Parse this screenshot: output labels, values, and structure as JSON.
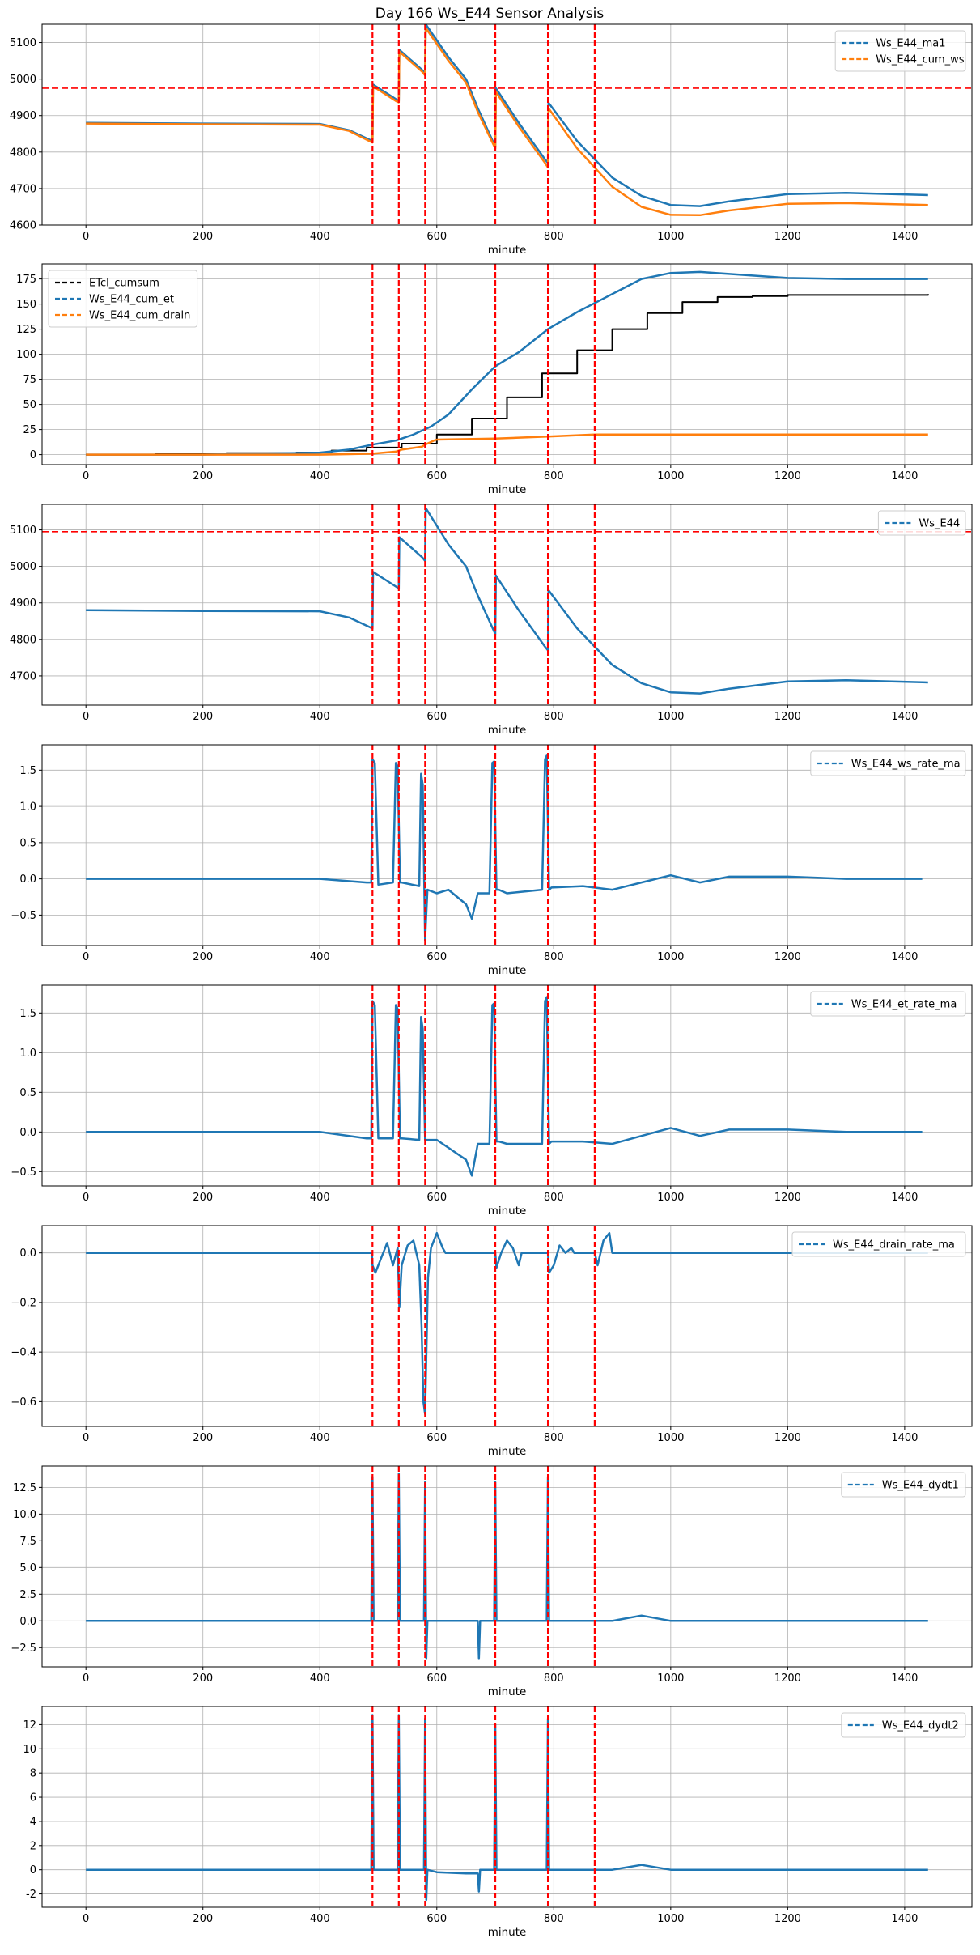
{
  "figure_title": "Day 166 Ws_E44 Sensor Analysis",
  "colors": {
    "blue": "#1f77b4",
    "orange": "#ff7f0e",
    "black": "#000000",
    "red": "#ff0000",
    "grid": "#b0b0b0"
  },
  "chart_data": [
    {
      "id": "p1",
      "type": "line",
      "title": "Day 166 Ws_E44 Sensor Analysis",
      "xlabel": "minute",
      "xlim": [
        -75,
        1515
      ],
      "ylim": [
        4600,
        5150
      ],
      "xticks": [
        0,
        200,
        400,
        600,
        800,
        1000,
        1200,
        1400
      ],
      "yticks": [
        4600,
        4700,
        4800,
        4900,
        5000,
        5100
      ],
      "vlines": [
        490,
        535,
        580,
        700,
        790,
        870
      ],
      "hline": 4975,
      "legend_position": "top-right",
      "series": [
        {
          "name": "Ws_E44_ma1",
          "color": "blue",
          "x": [
            0,
            200,
            400,
            450,
            490,
            491,
            530,
            535,
            536,
            575,
            580,
            581,
            620,
            650,
            670,
            700,
            701,
            740,
            785,
            790,
            791,
            840,
            900,
            950,
            1000,
            1050,
            1100,
            1200,
            1300,
            1440
          ],
          "y": [
            4880,
            4878,
            4877,
            4860,
            4830,
            4985,
            4945,
            4940,
            5080,
            5025,
            5015,
            5150,
            5060,
            5000,
            4920,
            4815,
            4975,
            4880,
            4780,
            4770,
            4935,
            4830,
            4730,
            4680,
            4655,
            4652,
            4665,
            4685,
            4688,
            4682
          ]
        },
        {
          "name": "Ws_E44_cum_ws",
          "color": "orange",
          "x": [
            0,
            200,
            400,
            450,
            490,
            491,
            530,
            535,
            536,
            575,
            580,
            581,
            620,
            650,
            670,
            700,
            701,
            740,
            785,
            790,
            791,
            840,
            900,
            950,
            1000,
            1050,
            1100,
            1200,
            1300,
            1440
          ],
          "y": [
            4878,
            4876,
            4875,
            4858,
            4826,
            4980,
            4940,
            4936,
            5075,
            5020,
            5010,
            5140,
            5050,
            4990,
            4910,
            4810,
            4965,
            4870,
            4770,
            4758,
            4920,
            4810,
            4705,
            4650,
            4628,
            4627,
            4640,
            4658,
            4660,
            4655
          ]
        }
      ]
    },
    {
      "id": "p2",
      "type": "line",
      "xlabel": "minute",
      "xlim": [
        -75,
        1515
      ],
      "ylim": [
        -10,
        190
      ],
      "xticks": [
        0,
        200,
        400,
        600,
        800,
        1000,
        1200,
        1400
      ],
      "yticks": [
        0,
        25,
        50,
        75,
        100,
        125,
        150,
        175
      ],
      "vlines": [
        490,
        535,
        580,
        700,
        790,
        870
      ],
      "legend_position": "top-left",
      "series": [
        {
          "name": "ETcl_cumsum",
          "color": "black",
          "step": true,
          "x": [
            0,
            120,
            240,
            360,
            420,
            480,
            540,
            600,
            660,
            720,
            780,
            840,
            900,
            960,
            1020,
            1080,
            1140,
            1200,
            1440
          ],
          "y": [
            0,
            1,
            1.5,
            2,
            4,
            7,
            11,
            20,
            36,
            57,
            81,
            104,
            125,
            141,
            152,
            157,
            158,
            159,
            160
          ]
        },
        {
          "name": "Ws_E44_cum_et",
          "color": "blue",
          "x": [
            0,
            200,
            400,
            450,
            490,
            530,
            560,
            590,
            620,
            660,
            700,
            740,
            790,
            840,
            900,
            950,
            1000,
            1050,
            1100,
            1200,
            1300,
            1440
          ],
          "y": [
            0,
            0,
            2,
            5,
            10,
            14,
            20,
            28,
            40,
            65,
            88,
            102,
            125,
            142,
            160,
            175,
            181,
            182,
            180,
            176,
            175,
            175
          ]
        },
        {
          "name": "Ws_E44_cum_drain",
          "color": "orange",
          "x": [
            0,
            200,
            400,
            450,
            490,
            530,
            540,
            575,
            580,
            595,
            600,
            700,
            790,
            870,
            900,
            1000,
            1440
          ],
          "y": [
            0,
            0,
            0,
            0.5,
            1,
            3,
            5,
            8,
            10,
            14,
            15,
            16,
            18,
            20,
            20,
            20,
            20
          ]
        }
      ]
    },
    {
      "id": "p3",
      "type": "line",
      "xlabel": "minute",
      "xlim": [
        -75,
        1515
      ],
      "ylim": [
        4620,
        5170
      ],
      "xticks": [
        0,
        200,
        400,
        600,
        800,
        1000,
        1200,
        1400
      ],
      "yticks": [
        4700,
        4800,
        4900,
        5000,
        5100
      ],
      "vlines": [
        490,
        535,
        580,
        700,
        790,
        870
      ],
      "hline": 5095,
      "legend_position": "top-right",
      "series": [
        {
          "name": "Ws_E44",
          "color": "blue",
          "x": [
            0,
            200,
            400,
            450,
            490,
            491,
            530,
            535,
            536,
            575,
            580,
            581,
            620,
            650,
            670,
            700,
            701,
            740,
            785,
            790,
            791,
            840,
            900,
            950,
            1000,
            1050,
            1100,
            1200,
            1300,
            1440
          ],
          "y": [
            4880,
            4878,
            4877,
            4860,
            4830,
            4985,
            4945,
            4940,
            5080,
            5025,
            5015,
            5160,
            5060,
            5000,
            4920,
            4815,
            4975,
            4880,
            4780,
            4770,
            4935,
            4830,
            4730,
            4680,
            4655,
            4652,
            4665,
            4685,
            4688,
            4682
          ]
        }
      ]
    },
    {
      "id": "p4",
      "type": "line",
      "xlabel": "minute",
      "xlim": [
        -75,
        1515
      ],
      "ylim": [
        -0.92,
        1.85
      ],
      "xticks": [
        0,
        200,
        400,
        600,
        800,
        1000,
        1200,
        1400
      ],
      "yticks": [
        -0.5,
        0.0,
        0.5,
        1.0,
        1.5
      ],
      "vlines": [
        490,
        535,
        580,
        700,
        790,
        870
      ],
      "legend_position": "top-right",
      "series": [
        {
          "name": "Ws_E44_ws_rate_ma",
          "color": "blue",
          "x": [
            0,
            200,
            400,
            480,
            488,
            490,
            494,
            500,
            525,
            530,
            533,
            537,
            540,
            570,
            573,
            576,
            580,
            584,
            600,
            620,
            650,
            660,
            670,
            690,
            695,
            698,
            702,
            706,
            720,
            780,
            785,
            788,
            792,
            796,
            850,
            900,
            950,
            1000,
            1050,
            1100,
            1200,
            1300,
            1430
          ],
          "y": [
            0,
            0,
            0,
            -0.05,
            -0.05,
            1.65,
            1.6,
            -0.08,
            -0.05,
            1.6,
            1.55,
            -0.05,
            -0.05,
            -0.1,
            1.45,
            1.3,
            -0.85,
            -0.15,
            -0.2,
            -0.15,
            -0.35,
            -0.55,
            -0.2,
            -0.2,
            1.6,
            1.62,
            -0.15,
            -0.15,
            -0.2,
            -0.15,
            1.65,
            1.7,
            -0.15,
            -0.12,
            -0.1,
            -0.15,
            -0.05,
            0.05,
            -0.05,
            0.03,
            0.03,
            0,
            0
          ]
        }
      ]
    },
    {
      "id": "p5",
      "type": "line",
      "xlabel": "minute",
      "xlim": [
        -75,
        1515
      ],
      "ylim": [
        -0.68,
        1.85
      ],
      "xticks": [
        0,
        200,
        400,
        600,
        800,
        1000,
        1200,
        1400
      ],
      "yticks": [
        -0.5,
        0.0,
        0.5,
        1.0,
        1.5
      ],
      "vlines": [
        490,
        535,
        580,
        700,
        790,
        870
      ],
      "legend_position": "top-right",
      "series": [
        {
          "name": "Ws_E44_et_rate_ma",
          "color": "blue",
          "x": [
            0,
            200,
            400,
            480,
            488,
            490,
            494,
            500,
            525,
            530,
            533,
            537,
            540,
            570,
            573,
            576,
            580,
            584,
            600,
            620,
            650,
            660,
            670,
            690,
            695,
            698,
            702,
            706,
            720,
            780,
            785,
            788,
            792,
            796,
            850,
            900,
            950,
            1000,
            1050,
            1100,
            1200,
            1300,
            1430
          ],
          "y": [
            0,
            0,
            0,
            -0.08,
            -0.08,
            1.65,
            1.6,
            -0.08,
            -0.08,
            1.6,
            1.55,
            -0.08,
            -0.08,
            -0.1,
            1.45,
            1.3,
            -0.1,
            -0.1,
            -0.1,
            -0.2,
            -0.35,
            -0.55,
            -0.15,
            -0.15,
            1.6,
            1.62,
            -0.12,
            -0.12,
            -0.15,
            -0.15,
            1.65,
            1.7,
            -0.15,
            -0.12,
            -0.12,
            -0.15,
            -0.05,
            0.05,
            -0.05,
            0.03,
            0.03,
            0,
            0
          ]
        }
      ]
    },
    {
      "id": "p6",
      "type": "line",
      "xlabel": "minute",
      "xlim": [
        -75,
        1515
      ],
      "ylim": [
        -0.7,
        0.11
      ],
      "xticks": [
        0,
        200,
        400,
        600,
        800,
        1000,
        1200,
        1400
      ],
      "yticks": [
        -0.6,
        -0.4,
        -0.2,
        0.0
      ],
      "vlines": [
        490,
        535,
        580,
        700,
        790,
        870
      ],
      "legend_position": "top-right",
      "series": [
        {
          "name": "Ws_E44_drain_rate_ma",
          "color": "blue",
          "x": [
            0,
            489,
            490,
            495,
            505,
            515,
            525,
            533,
            536,
            540,
            550,
            560,
            570,
            574,
            577,
            580,
            585,
            590,
            600,
            610,
            615,
            700,
            702,
            710,
            720,
            730,
            740,
            745,
            790,
            792,
            800,
            810,
            820,
            830,
            835,
            870,
            875,
            885,
            895,
            900,
            1440
          ],
          "y": [
            0,
            0,
            -0.05,
            -0.08,
            -0.02,
            0.04,
            -0.05,
            0.02,
            -0.22,
            -0.05,
            0.03,
            0.05,
            -0.05,
            -0.3,
            -0.6,
            -0.65,
            -0.1,
            0.02,
            0.08,
            0.02,
            0,
            0,
            -0.06,
            0.0,
            0.05,
            0.02,
            -0.05,
            0,
            0,
            -0.08,
            -0.05,
            0.03,
            0.0,
            0.02,
            0,
            0,
            -0.05,
            0.05,
            0.08,
            0,
            0
          ]
        }
      ]
    },
    {
      "id": "p7",
      "type": "line",
      "xlabel": "minute",
      "xlim": [
        -75,
        1515
      ],
      "ylim": [
        -4.3,
        14.5
      ],
      "xticks": [
        0,
        200,
        400,
        600,
        800,
        1000,
        1200,
        1400
      ],
      "yticks": [
        -2.5,
        0.0,
        2.5,
        5.0,
        7.5,
        10.0,
        12.5
      ],
      "vlines": [
        490,
        535,
        580,
        700,
        790,
        870
      ],
      "legend_position": "top-right",
      "series": [
        {
          "name": "Ws_E44_dydt1",
          "color": "blue",
          "x": [
            0,
            200,
            400,
            488,
            490,
            492,
            533,
            535,
            537,
            578,
            580,
            582,
            584,
            600,
            650,
            670,
            672,
            674,
            698,
            700,
            702,
            788,
            790,
            792,
            900,
            950,
            1000,
            1100,
            1200,
            1300,
            1440
          ],
          "y": [
            0,
            0,
            0,
            0,
            13.5,
            0,
            0,
            13.8,
            0,
            0,
            13.0,
            -3.5,
            0,
            0,
            0,
            0,
            -3.5,
            0,
            0,
            13.0,
            0,
            0,
            13.5,
            0,
            0,
            0.5,
            0,
            0,
            0,
            0,
            0
          ]
        }
      ]
    },
    {
      "id": "p8",
      "type": "line",
      "xlabel": "minute",
      "xlim": [
        -75,
        1515
      ],
      "ylim": [
        -3.1,
        13.5
      ],
      "xticks": [
        0,
        200,
        400,
        600,
        800,
        1000,
        1200,
        1400
      ],
      "yticks": [
        -2,
        0,
        2,
        4,
        6,
        8,
        10,
        12
      ],
      "vlines": [
        490,
        535,
        580,
        700,
        790,
        870
      ],
      "legend_position": "top-right",
      "series": [
        {
          "name": "Ws_E44_dydt2",
          "color": "blue",
          "x": [
            0,
            200,
            400,
            488,
            490,
            492,
            533,
            535,
            537,
            578,
            580,
            582,
            584,
            600,
            650,
            670,
            672,
            674,
            698,
            700,
            702,
            788,
            790,
            792,
            900,
            950,
            1000,
            1100,
            1200,
            1300,
            1440
          ],
          "y": [
            0,
            0,
            0,
            0,
            12.8,
            0,
            0,
            12.8,
            0,
            0,
            12.5,
            -2.5,
            0,
            -0.2,
            -0.3,
            -0.3,
            -1.8,
            0,
            0,
            12.0,
            0,
            0,
            12.5,
            0,
            0,
            0.4,
            0,
            0,
            0,
            0,
            0
          ]
        }
      ]
    }
  ]
}
